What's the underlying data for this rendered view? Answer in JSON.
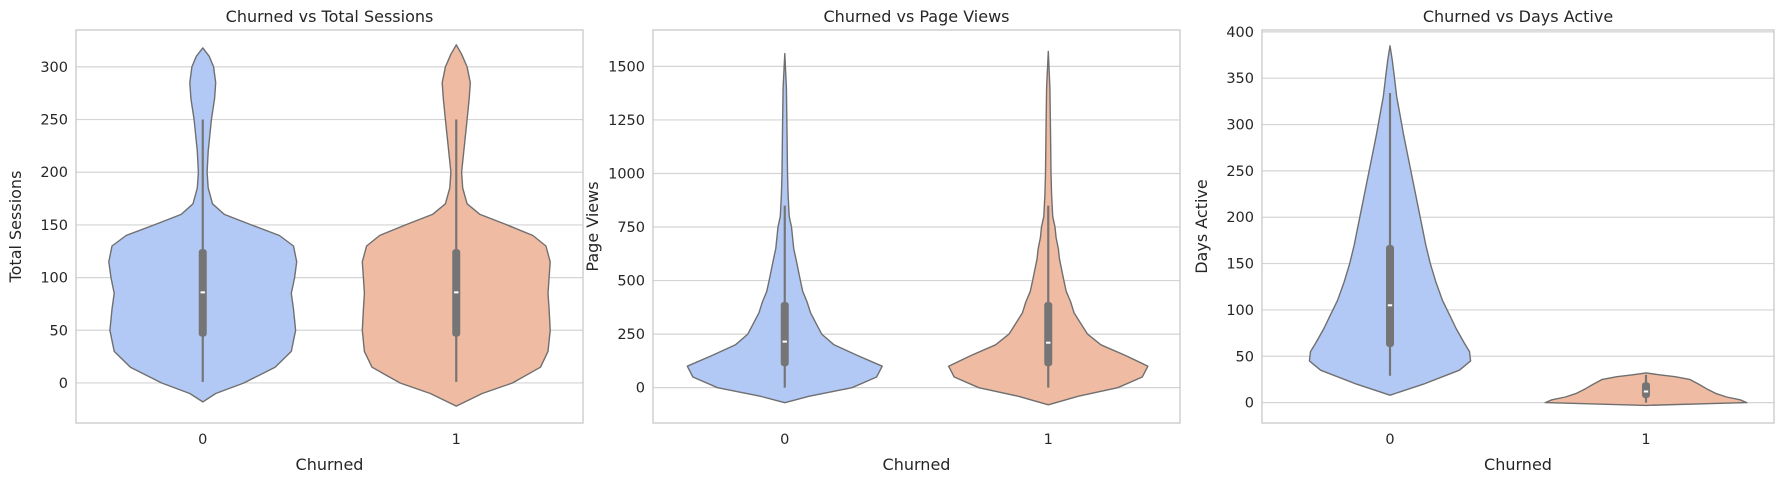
{
  "chart_data": [
    {
      "type": "violin",
      "title": "Churned vs Total Sessions",
      "xlabel": "Churned",
      "ylabel": "Total Sessions",
      "categories": [
        "0",
        "1"
      ],
      "ylim": [
        -38,
        335
      ],
      "yticks": [
        0,
        50,
        100,
        150,
        200,
        250,
        300
      ],
      "grid": true,
      "violins": [
        {
          "category": "0",
          "color": "#b3c9f5",
          "profile": [
            [
              -18,
              0
            ],
            [
              -10,
              0.12
            ],
            [
              0,
              0.38
            ],
            [
              15,
              0.67
            ],
            [
              30,
              0.82
            ],
            [
              50,
              0.86
            ],
            [
              70,
              0.84
            ],
            [
              85,
              0.82
            ],
            [
              100,
              0.85
            ],
            [
              115,
              0.87
            ],
            [
              130,
              0.84
            ],
            [
              140,
              0.71
            ],
            [
              150,
              0.45
            ],
            [
              160,
              0.2
            ],
            [
              170,
              0.09
            ],
            [
              185,
              0.05
            ],
            [
              200,
              0.04
            ],
            [
              220,
              0.05
            ],
            [
              250,
              0.08
            ],
            [
              270,
              0.11
            ],
            [
              285,
              0.12
            ],
            [
              300,
              0.1
            ],
            [
              310,
              0.06
            ],
            [
              318,
              0
            ]
          ],
          "q1": 44,
          "median": 86,
          "q3": 127,
          "whisker_low": 1,
          "whisker_high": 250
        },
        {
          "category": "1",
          "color": "#f0bba3",
          "profile": [
            [
              -22,
              0
            ],
            [
              -10,
              0.24
            ],
            [
              0,
              0.52
            ],
            [
              15,
              0.78
            ],
            [
              30,
              0.85
            ],
            [
              50,
              0.87
            ],
            [
              70,
              0.86
            ],
            [
              85,
              0.85
            ],
            [
              100,
              0.86
            ],
            [
              115,
              0.87
            ],
            [
              130,
              0.83
            ],
            [
              140,
              0.71
            ],
            [
              150,
              0.47
            ],
            [
              160,
              0.22
            ],
            [
              170,
              0.1
            ],
            [
              185,
              0.06
            ],
            [
              200,
              0.05
            ],
            [
              220,
              0.07
            ],
            [
              250,
              0.1
            ],
            [
              270,
              0.12
            ],
            [
              285,
              0.13
            ],
            [
              300,
              0.1
            ],
            [
              312,
              0.05
            ],
            [
              321,
              0
            ]
          ],
          "q1": 44,
          "median": 86,
          "q3": 127,
          "whisker_low": 1,
          "whisker_high": 250
        }
      ]
    },
    {
      "type": "violin",
      "title": "Churned vs Page Views",
      "xlabel": "Churned",
      "ylabel": "Page Views",
      "categories": [
        "0",
        "1"
      ],
      "ylim": [
        -165,
        1670
      ],
      "yticks": [
        0,
        250,
        500,
        750,
        1000,
        1250,
        1500
      ],
      "grid": true,
      "violins": [
        {
          "category": "0",
          "color": "#b3c9f5",
          "profile": [
            [
              -70,
              0
            ],
            [
              -40,
              0.22
            ],
            [
              0,
              0.6
            ],
            [
              50,
              0.82
            ],
            [
              100,
              0.87
            ],
            [
              150,
              0.65
            ],
            [
              200,
              0.44
            ],
            [
              250,
              0.33
            ],
            [
              300,
              0.28
            ],
            [
              350,
              0.23
            ],
            [
              400,
              0.2
            ],
            [
              450,
              0.16
            ],
            [
              500,
              0.14
            ],
            [
              550,
              0.12
            ],
            [
              600,
              0.1
            ],
            [
              650,
              0.08
            ],
            [
              700,
              0.07
            ],
            [
              750,
              0.06
            ],
            [
              800,
              0.04
            ],
            [
              900,
              0.03
            ],
            [
              1000,
              0.025
            ],
            [
              1200,
              0.02
            ],
            [
              1400,
              0.015
            ],
            [
              1560,
              0
            ]
          ],
          "q1": 100,
          "median": 215,
          "q3": 400,
          "whisker_low": 0,
          "whisker_high": 850
        },
        {
          "category": "1",
          "color": "#f0bba3",
          "profile": [
            [
              -80,
              0
            ],
            [
              -40,
              0.27
            ],
            [
              0,
              0.62
            ],
            [
              50,
              0.84
            ],
            [
              100,
              0.89
            ],
            [
              150,
              0.69
            ],
            [
              200,
              0.47
            ],
            [
              250,
              0.35
            ],
            [
              300,
              0.29
            ],
            [
              350,
              0.23
            ],
            [
              400,
              0.2
            ],
            [
              450,
              0.16
            ],
            [
              500,
              0.14
            ],
            [
              550,
              0.12
            ],
            [
              600,
              0.1
            ],
            [
              650,
              0.09
            ],
            [
              700,
              0.07
            ],
            [
              750,
              0.06
            ],
            [
              800,
              0.04
            ],
            [
              900,
              0.03
            ],
            [
              1000,
              0.025
            ],
            [
              1200,
              0.02
            ],
            [
              1400,
              0.015
            ],
            [
              1570,
              0
            ]
          ],
          "q1": 100,
          "median": 210,
          "q3": 400,
          "whisker_low": 0,
          "whisker_high": 850
        }
      ]
    },
    {
      "type": "violin",
      "title": "Churned vs Days Active",
      "xlabel": "Churned",
      "ylabel": "Days Active",
      "categories": [
        "0",
        "1"
      ],
      "ylim": [
        -22,
        402
      ],
      "yticks": [
        0,
        50,
        100,
        150,
        200,
        250,
        300,
        350,
        400
      ],
      "grid": true,
      "violins": [
        {
          "category": "0",
          "color": "#b3c9f5",
          "profile": [
            [
              8,
              0
            ],
            [
              20,
              0.3
            ],
            [
              35,
              0.62
            ],
            [
              45,
              0.72
            ],
            [
              55,
              0.71
            ],
            [
              65,
              0.66
            ],
            [
              80,
              0.59
            ],
            [
              95,
              0.53
            ],
            [
              110,
              0.47
            ],
            [
              130,
              0.41
            ],
            [
              150,
              0.36
            ],
            [
              170,
              0.32
            ],
            [
              200,
              0.27
            ],
            [
              230,
              0.22
            ],
            [
              260,
              0.17
            ],
            [
              290,
              0.12
            ],
            [
              310,
              0.09
            ],
            [
              330,
              0.06
            ],
            [
              350,
              0.04
            ],
            [
              370,
              0.02
            ],
            [
              385,
              0
            ]
          ],
          "q1": 60,
          "median": 105,
          "q3": 170,
          "whisker_low": 29,
          "whisker_high": 334
        },
        {
          "category": "1",
          "color": "#f0bba3",
          "profile": [
            [
              -3,
              0
            ],
            [
              0,
              0.9
            ],
            [
              3,
              0.84
            ],
            [
              6,
              0.72
            ],
            [
              10,
              0.62
            ],
            [
              15,
              0.54
            ],
            [
              20,
              0.47
            ],
            [
              25,
              0.39
            ],
            [
              28,
              0.26
            ],
            [
              30,
              0.12
            ],
            [
              32,
              0
            ]
          ],
          "q1": 5,
          "median": 12,
          "q3": 22,
          "whisker_low": 0,
          "whisker_high": 30
        }
      ]
    }
  ]
}
